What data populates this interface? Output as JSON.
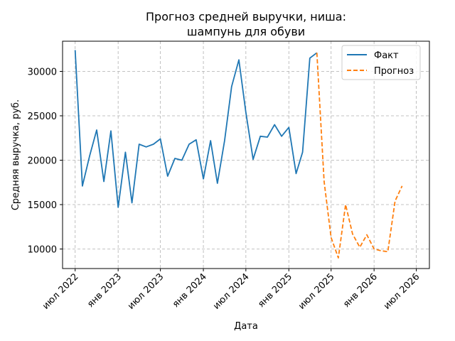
{
  "chart_data": {
    "type": "line",
    "title_lines": [
      "Прогноз средней выручки, ниша:",
      "шампунь для обуви"
    ],
    "xlabel": "Дата",
    "ylabel": "Средняя выручка, руб.",
    "x_axis_type": "date",
    "xlim": [
      "2022-05-08",
      "2026-08-26"
    ],
    "ylim": [
      7800,
      33400
    ],
    "x_ticks": [
      {
        "date": "2022-07-01",
        "label": "июл 2022"
      },
      {
        "date": "2023-01-01",
        "label": "янв 2023"
      },
      {
        "date": "2023-07-01",
        "label": "июл 2023"
      },
      {
        "date": "2024-01-01",
        "label": "янв 2024"
      },
      {
        "date": "2024-07-01",
        "label": "июл 2024"
      },
      {
        "date": "2025-01-01",
        "label": "янв 2025"
      },
      {
        "date": "2025-07-01",
        "label": "июл 2025"
      },
      {
        "date": "2026-01-01",
        "label": "янв 2026"
      },
      {
        "date": "2026-07-01",
        "label": "июл 2026"
      }
    ],
    "y_ticks": [
      {
        "value": 10000,
        "label": "10000"
      },
      {
        "value": 15000,
        "label": "15000"
      },
      {
        "value": 20000,
        "label": "20000"
      },
      {
        "value": 25000,
        "label": "25000"
      },
      {
        "value": 30000,
        "label": "30000"
      }
    ],
    "grid": true,
    "legend_position": "top-right",
    "series": [
      {
        "name": "Факт",
        "color": "#1f77b4",
        "style": "solid",
        "points": [
          [
            "2022-07-01",
            32400
          ],
          [
            "2022-08-01",
            17100
          ],
          [
            "2022-09-01",
            20500
          ],
          [
            "2022-10-01",
            23400
          ],
          [
            "2022-11-01",
            17600
          ],
          [
            "2022-12-01",
            23300
          ],
          [
            "2023-01-01",
            14700
          ],
          [
            "2023-02-01",
            20900
          ],
          [
            "2023-03-01",
            15200
          ],
          [
            "2023-04-01",
            21800
          ],
          [
            "2023-05-01",
            21500
          ],
          [
            "2023-06-01",
            21800
          ],
          [
            "2023-07-01",
            22400
          ],
          [
            "2023-08-01",
            18200
          ],
          [
            "2023-09-01",
            20200
          ],
          [
            "2023-10-01",
            20000
          ],
          [
            "2023-11-01",
            21800
          ],
          [
            "2023-12-01",
            22300
          ],
          [
            "2024-01-01",
            17900
          ],
          [
            "2024-02-01",
            22200
          ],
          [
            "2024-03-01",
            17400
          ],
          [
            "2024-04-01",
            22200
          ],
          [
            "2024-05-01",
            28300
          ],
          [
            "2024-06-01",
            31300
          ],
          [
            "2024-07-01",
            25400
          ],
          [
            "2024-08-01",
            20100
          ],
          [
            "2024-09-01",
            22700
          ],
          [
            "2024-10-01",
            22600
          ],
          [
            "2024-11-01",
            24000
          ],
          [
            "2024-12-01",
            22700
          ],
          [
            "2025-01-01",
            23700
          ],
          [
            "2025-02-01",
            18500
          ],
          [
            "2025-03-01",
            20900
          ],
          [
            "2025-04-01",
            31500
          ],
          [
            "2025-05-01",
            32100
          ]
        ]
      },
      {
        "name": "Прогноз",
        "color": "#ff7f0e",
        "style": "dashed",
        "points": [
          [
            "2025-05-01",
            32100
          ],
          [
            "2025-06-01",
            17600
          ],
          [
            "2025-07-01",
            11300
          ],
          [
            "2025-08-01",
            9000
          ],
          [
            "2025-09-01",
            15000
          ],
          [
            "2025-10-01",
            11700
          ],
          [
            "2025-11-01",
            10200
          ],
          [
            "2025-12-01",
            11600
          ],
          [
            "2026-01-01",
            10000
          ],
          [
            "2026-02-01",
            9800
          ],
          [
            "2026-03-01",
            9700
          ],
          [
            "2026-04-01",
            15400
          ],
          [
            "2026-05-01",
            17100
          ]
        ]
      }
    ]
  }
}
